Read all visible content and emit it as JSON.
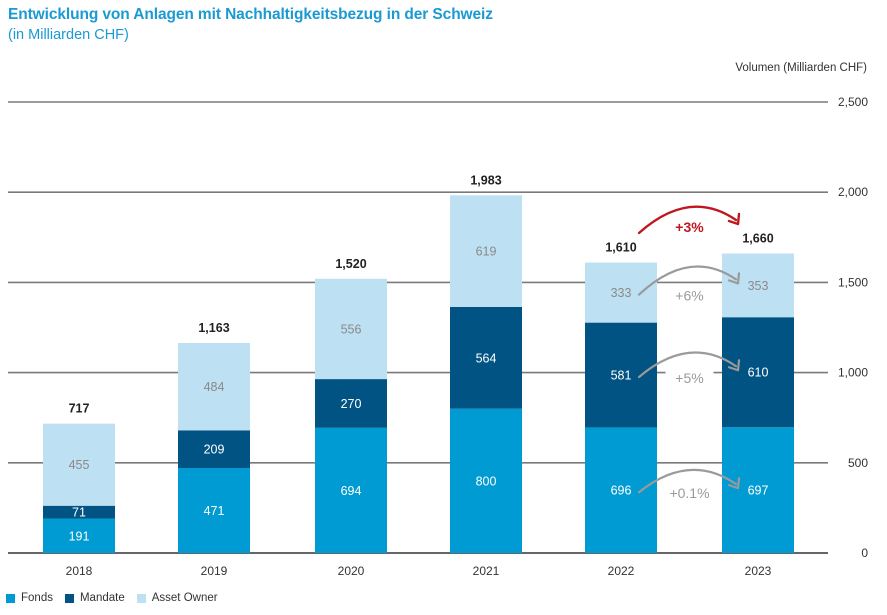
{
  "header": {
    "title": "Entwicklung von Anlagen mit Nachhaltigkeitsbezug in der Schweiz",
    "subtitle": "(in Milliarden CHF)"
  },
  "chart_data": {
    "type": "bar",
    "stacked": true,
    "title": "Entwicklung von Anlagen mit Nachhaltigkeitsbezug in der Schweiz",
    "subtitle": "(in Milliarden CHF)",
    "xlabel": "",
    "ylabel": "Volumen (Milliarden CHF)",
    "ylim": [
      0,
      2500
    ],
    "yticks": [
      0,
      500,
      1000,
      1500,
      2000,
      2500
    ],
    "ytick_labels": [
      "0",
      "500",
      "1,000",
      "1,500",
      "2,000",
      "2,500"
    ],
    "y_axis_side": "right",
    "grid": true,
    "legend_position": "bottom-left",
    "categories": [
      "2018",
      "2019",
      "2020",
      "2021",
      "2022",
      "2023"
    ],
    "series": [
      {
        "name": "Fonds",
        "color": "#009bd2",
        "label_color": "#ffffff",
        "values": [
          191,
          471,
          694,
          800,
          696,
          697
        ]
      },
      {
        "name": "Mandate",
        "color": "#005382",
        "label_color": "#ffffff",
        "values": [
          71,
          209,
          270,
          564,
          581,
          610
        ]
      },
      {
        "name": "Asset Owner",
        "color": "#bde0f3",
        "label_color": "#8a8a8a",
        "values": [
          455,
          484,
          556,
          619,
          333,
          353
        ]
      }
    ],
    "totals": [
      717,
      1163,
      1520,
      1983,
      1610,
      1660
    ],
    "total_labels": [
      "717",
      "1,163",
      "1,520",
      "1,983",
      "1,610",
      "1,660"
    ],
    "annotations": [
      {
        "text": "+3%",
        "color": "#c0161f",
        "from": "2022",
        "to": "2023",
        "target": "total"
      },
      {
        "text": "+6%",
        "color": "#9a9a9a",
        "from": "2022",
        "to": "2023",
        "target": "Asset Owner"
      },
      {
        "text": "+5%",
        "color": "#9a9a9a",
        "from": "2022",
        "to": "2023",
        "target": "Mandate"
      },
      {
        "text": "+0.1%",
        "color": "#9a9a9a",
        "from": "2022",
        "to": "2023",
        "target": "Fonds"
      }
    ]
  }
}
